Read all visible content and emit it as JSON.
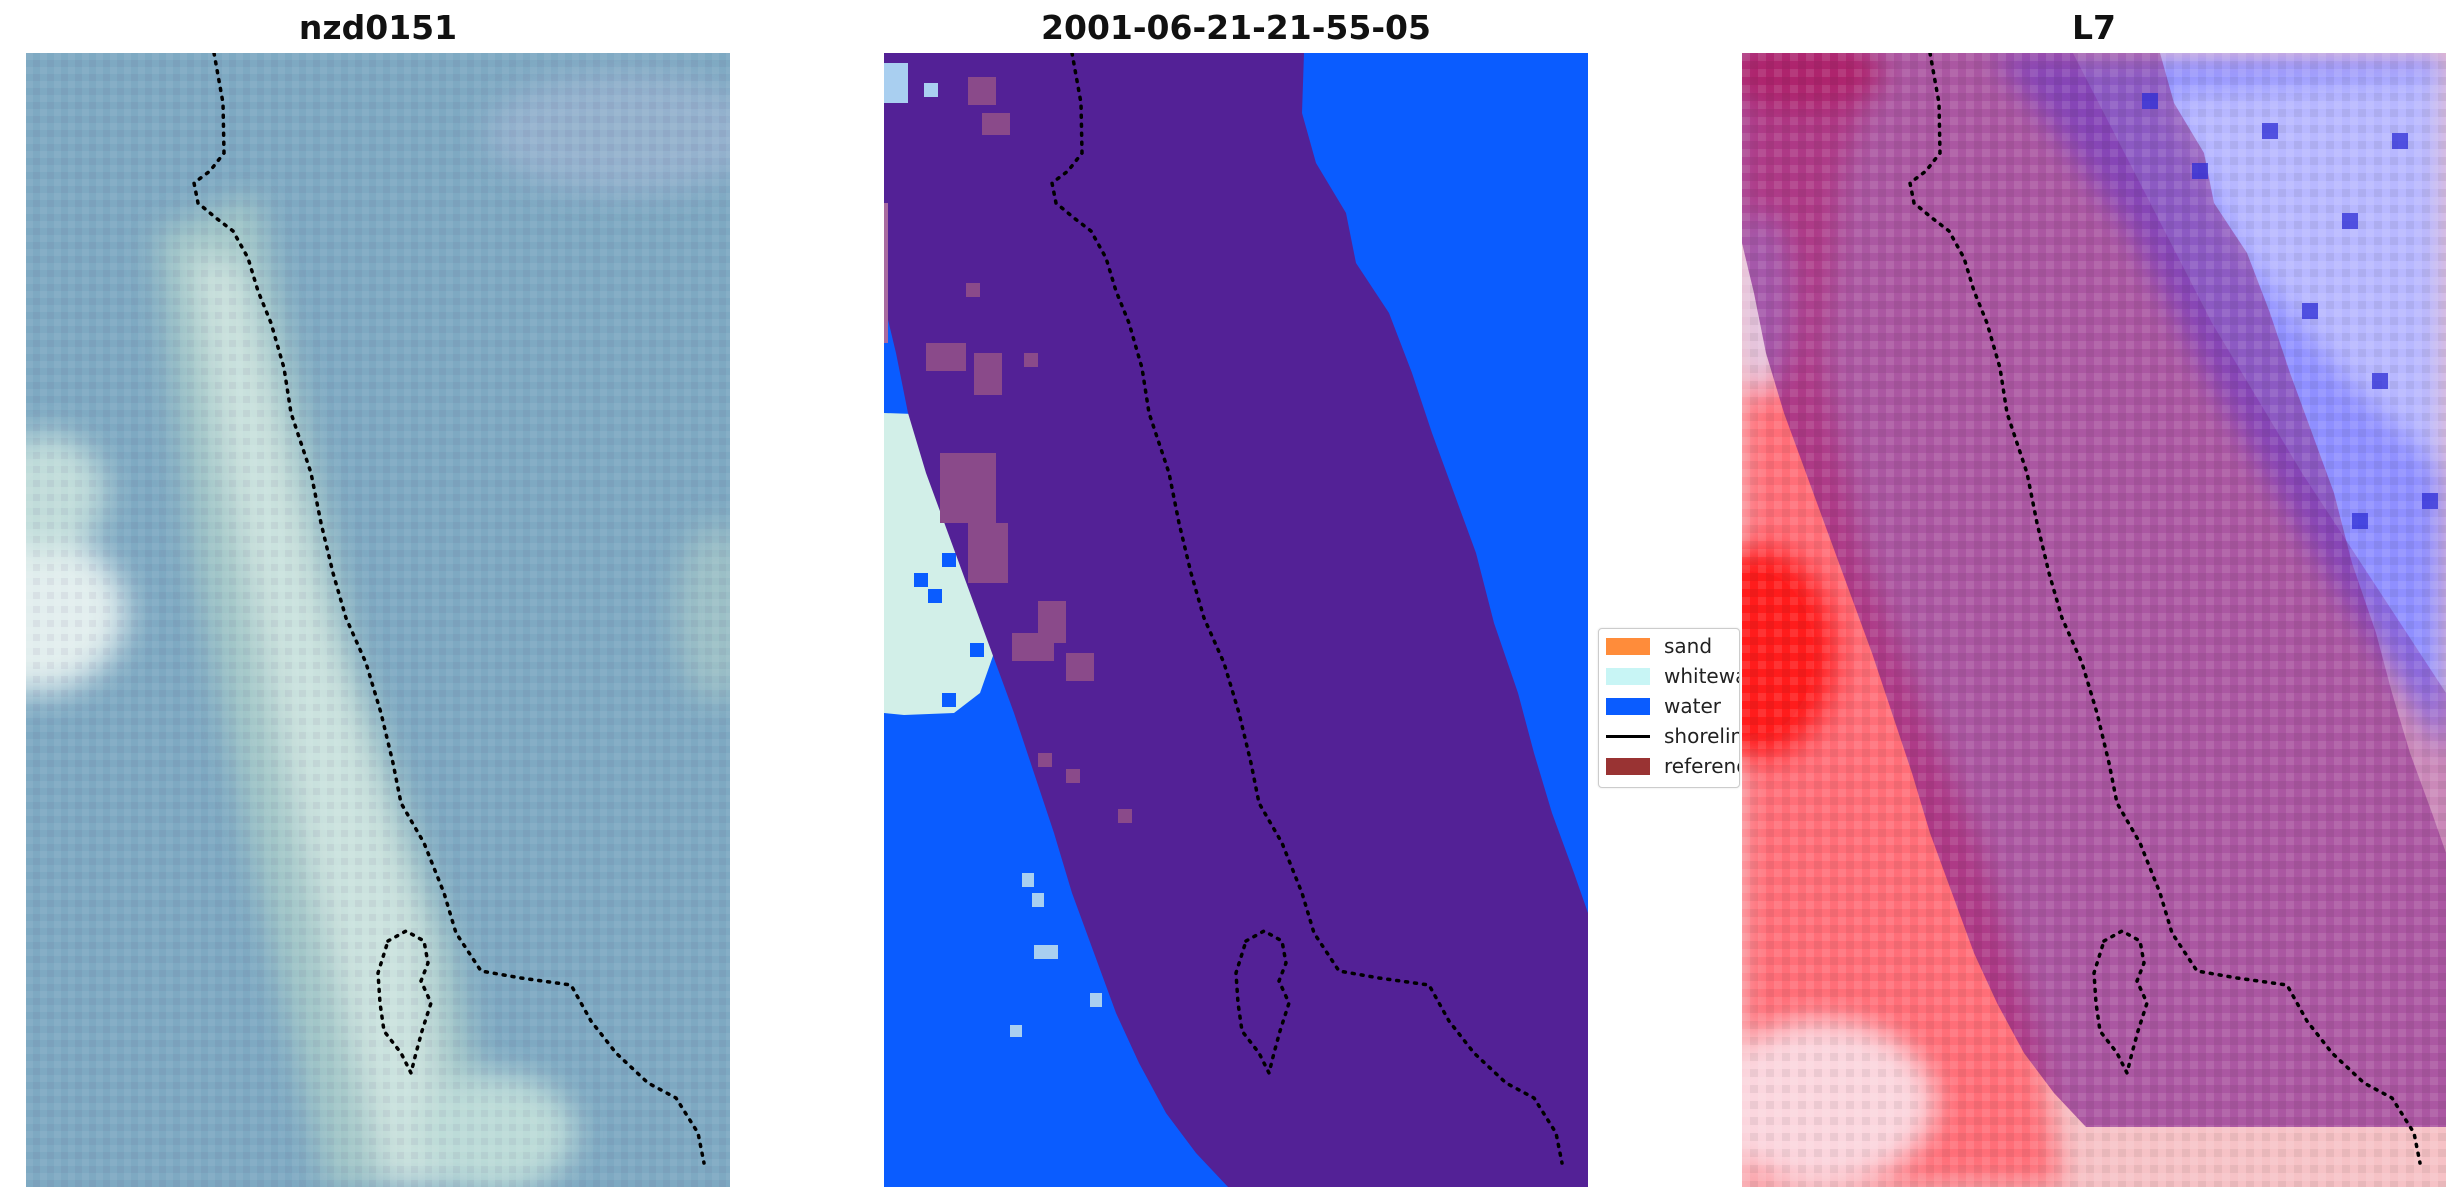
{
  "panels": [
    {
      "title": "nzd0151"
    },
    {
      "title": "2001-06-21-21-55-05"
    },
    {
      "title": "L7"
    }
  ],
  "legend": {
    "items": [
      {
        "label": "sand",
        "color": "#ff8c3a",
        "icon": "sand-swatch"
      },
      {
        "label": "whitewater",
        "color": "#c8f5f5",
        "icon": "whitewater-swatch"
      },
      {
        "label": "water",
        "color": "#0a5cff",
        "icon": "water-swatch"
      },
      {
        "label": "shoreline",
        "color": "#000000",
        "icon": "shoreline-line"
      },
      {
        "label": "reference",
        "color": "#993333",
        "icon": "reference-swatch"
      }
    ]
  },
  "colors": {
    "water": "#0a5cff",
    "reference_overlay": "#532196",
    "sand_overlay": "#8a4a8a",
    "whitewater": "#c8f5f5",
    "rgb_base": "#7ea9c2",
    "l7_red": "#e0223a",
    "l7_blue": "#6c6cff"
  }
}
